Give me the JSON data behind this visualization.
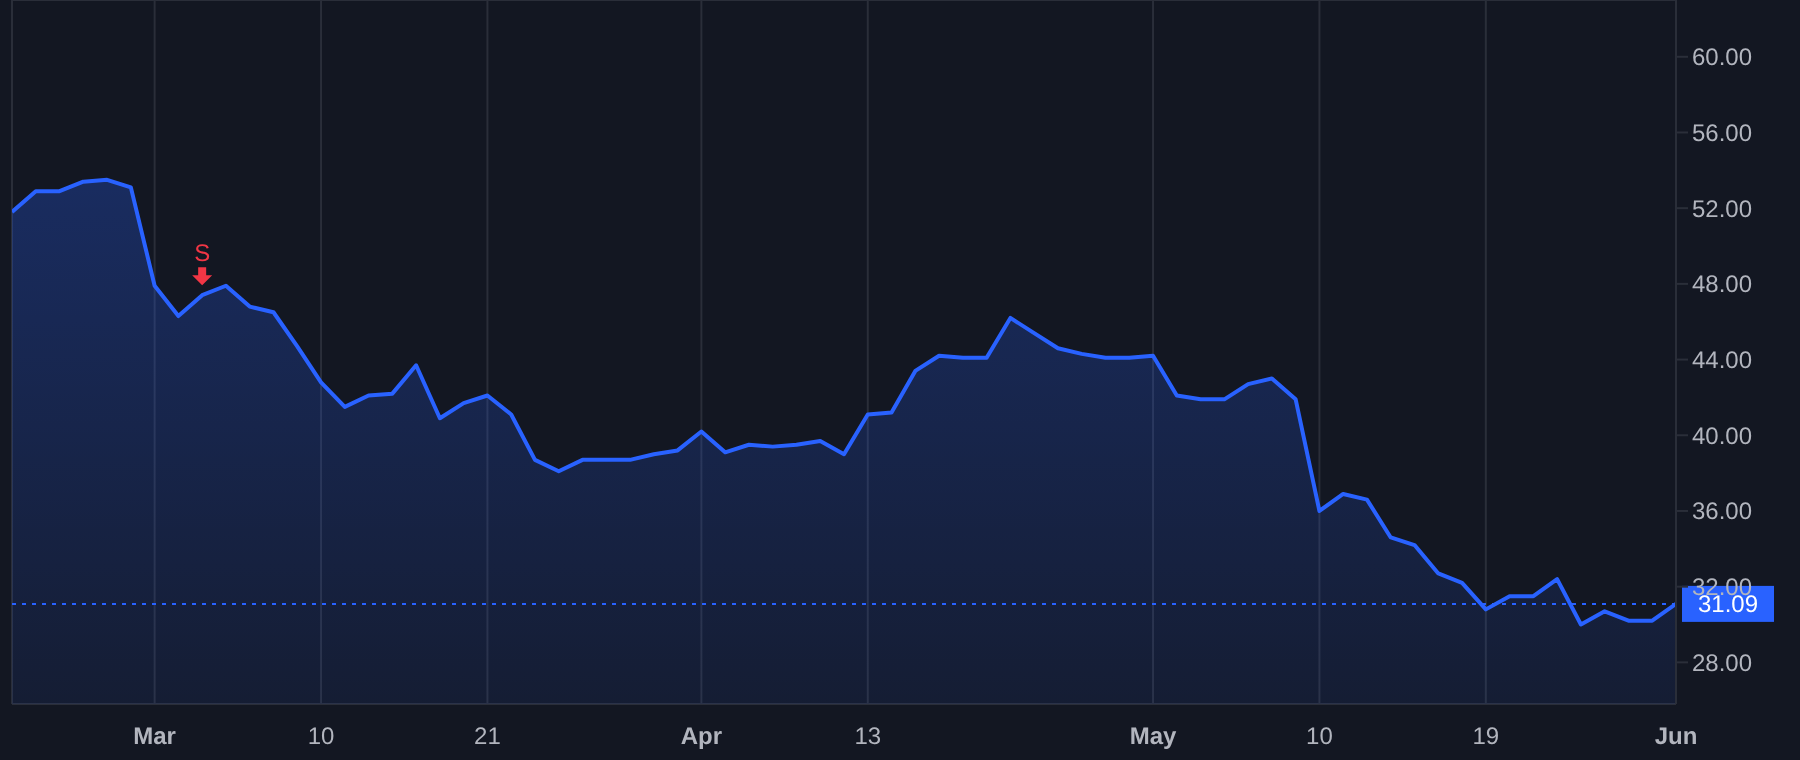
{
  "chart_data": {
    "type": "area",
    "categories": [
      null,
      null,
      null,
      null,
      null,
      null,
      "Mar",
      null,
      null,
      null,
      null,
      null,
      null,
      "10",
      null,
      null,
      null,
      null,
      null,
      null,
      "21",
      null,
      null,
      null,
      null,
      null,
      null,
      null,
      null,
      "Apr",
      null,
      null,
      null,
      null,
      null,
      null,
      "13",
      null,
      null,
      null,
      null,
      null,
      null,
      null,
      null,
      null,
      null,
      null,
      "May",
      null,
      null,
      null,
      null,
      null,
      null,
      "10",
      null,
      null,
      null,
      null,
      null,
      null,
      "19",
      null,
      null,
      null,
      null,
      null,
      null,
      null,
      "Jun"
    ],
    "series": [
      {
        "color": "#2962ff",
        "values": [
          51.8,
          52.9,
          52.9,
          53.4,
          53.5,
          53.1,
          47.9,
          46.3,
          47.4,
          47.9,
          46.8,
          46.5,
          44.7,
          42.8,
          41.5,
          42.1,
          42.2,
          43.7,
          40.9,
          41.7,
          42.1,
          41.1,
          38.7,
          38.1,
          38.7,
          38.7,
          38.7,
          39.0,
          39.2,
          40.2,
          39.1,
          39.5,
          39.4,
          39.5,
          39.7,
          39.0,
          41.1,
          41.2,
          43.4,
          44.2,
          44.1,
          44.1,
          46.2,
          45.4,
          44.6,
          44.3,
          44.1,
          44.1,
          44.2,
          42.1,
          41.9,
          41.9,
          42.7,
          43.0,
          41.9,
          36.0,
          36.9,
          36.6,
          34.6,
          34.2,
          32.7,
          32.2,
          30.8,
          31.5,
          31.5,
          32.4,
          30.0,
          30.7,
          30.2,
          30.2,
          31.09
        ]
      }
    ],
    "ylim": [
      25.8,
      63
    ],
    "yticks": [
      {
        "value": 28,
        "label": "28.00"
      },
      {
        "value": 32,
        "label": "32.00"
      },
      {
        "value": 36,
        "label": "36.00"
      },
      {
        "value": 40,
        "label": "40.00"
      },
      {
        "value": 44,
        "label": "44.00"
      },
      {
        "value": 48,
        "label": "48.00"
      },
      {
        "value": 52,
        "label": "52.00"
      },
      {
        "value": 56,
        "label": "56.00"
      },
      {
        "value": 60,
        "label": "60.00"
      }
    ],
    "grid": true,
    "ref_lines": [
      {
        "axis": "y",
        "value": 31.09,
        "label": "31.09",
        "color": "#2962ff",
        "line_style": "dotted"
      }
    ],
    "annotations": [
      {
        "text": "S",
        "y": 47.4
      }
    ]
  }
}
